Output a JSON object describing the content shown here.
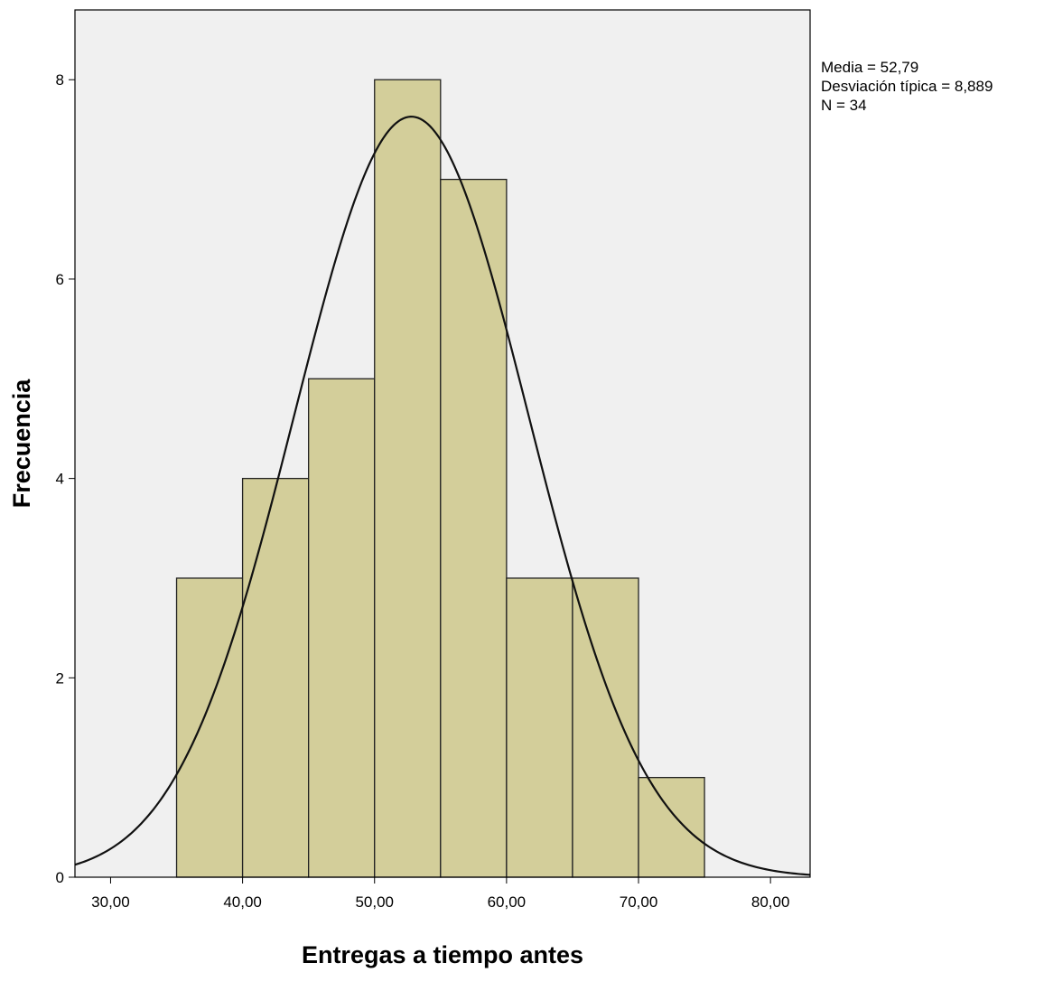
{
  "chart_data": {
    "type": "bar",
    "subtype": "histogram",
    "xlabel": "Entregas a tiempo antes",
    "ylabel": "Frecuencia",
    "bins": [
      {
        "x0": 35,
        "x1": 40,
        "count": 3
      },
      {
        "x0": 40,
        "x1": 45,
        "count": 4
      },
      {
        "x0": 45,
        "x1": 50,
        "count": 5
      },
      {
        "x0": 50,
        "x1": 55,
        "count": 8
      },
      {
        "x0": 55,
        "x1": 60,
        "count": 7
      },
      {
        "x0": 60,
        "x1": 65,
        "count": 3
      },
      {
        "x0": 65,
        "x1": 70,
        "count": 3
      },
      {
        "x0": 70,
        "x1": 75,
        "count": 1
      }
    ],
    "xlim": [
      27.3,
      83.0
    ],
    "ylim": [
      0,
      8.7
    ],
    "xticks": [
      30,
      40,
      50,
      60,
      70,
      80
    ],
    "xtick_labels": [
      "30,00",
      "40,00",
      "50,00",
      "60,00",
      "70,00",
      "80,00"
    ],
    "yticks": [
      0,
      2,
      4,
      6,
      8
    ],
    "ytick_labels": [
      "0",
      "2",
      "4",
      "6",
      "8"
    ],
    "normal_curve": {
      "mean": 52.79,
      "sd": 8.889,
      "n": 34,
      "bin_width": 5
    },
    "stats_lines": [
      "Media = 52,79",
      "Desviación típica = 8,889",
      "N = 34"
    ],
    "colors": {
      "plot_background": "#f0f0f0",
      "bar_fill": "#d3ce9a",
      "bar_stroke": "#222222",
      "curve": "#111111"
    },
    "grid": false,
    "legend": "top-right"
  }
}
